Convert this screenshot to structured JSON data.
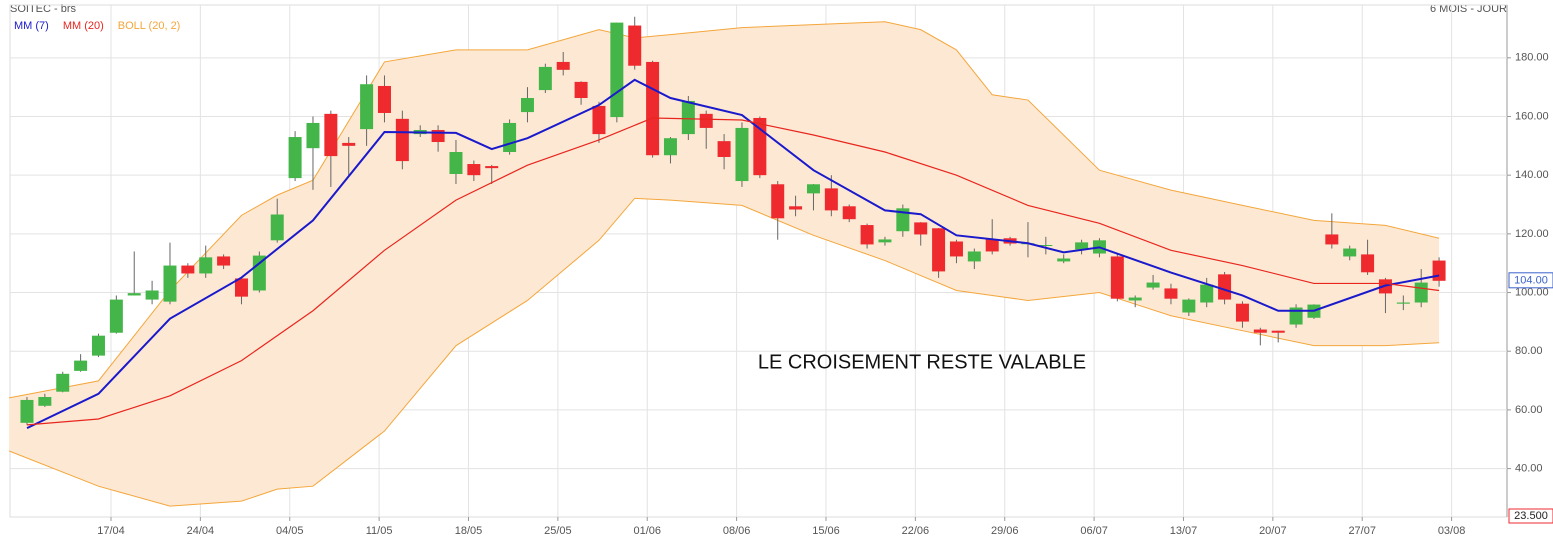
{
  "chart_data": {
    "type": "candlestick",
    "title": "SOITEC - brs",
    "subtitle": "6 MOIS - JOUR",
    "annotation": "LE CROISEMENT RESTE VALABLE",
    "up_color": "#44b649",
    "down_color": "#ee2a2f",
    "xlim": [
      -0.95,
      82.8
    ],
    "ylim": [
      23.5,
      198
    ],
    "grid": true,
    "xticks": [
      {
        "value": 4.7,
        "label": "17/04"
      },
      {
        "value": 9.7,
        "label": "24/04"
      },
      {
        "value": 14.7,
        "label": "04/05"
      },
      {
        "value": 19.7,
        "label": "11/05"
      },
      {
        "value": 24.7,
        "label": "18/05"
      },
      {
        "value": 29.7,
        "label": "25/05"
      },
      {
        "value": 34.7,
        "label": "01/06"
      },
      {
        "value": 39.7,
        "label": "08/06"
      },
      {
        "value": 44.7,
        "label": "15/06"
      },
      {
        "value": 49.7,
        "label": "22/06"
      },
      {
        "value": 54.7,
        "label": "29/06"
      },
      {
        "value": 59.7,
        "label": "06/07"
      },
      {
        "value": 64.7,
        "label": "13/07"
      },
      {
        "value": 69.7,
        "label": "20/07"
      },
      {
        "value": 74.7,
        "label": "27/07"
      },
      {
        "value": 79.7,
        "label": "03/08"
      }
    ],
    "yticks": [
      {
        "value": 23.5,
        "label": "23.500"
      },
      {
        "value": 40,
        "label": "40.00"
      },
      {
        "value": 60,
        "label": "60.00"
      },
      {
        "value": 80,
        "label": "80.00"
      },
      {
        "value": 100,
        "label": "100.00"
      },
      {
        "value": 120,
        "label": "120.00"
      },
      {
        "value": 140,
        "label": "140.00"
      },
      {
        "value": 160,
        "label": "160.00"
      },
      {
        "value": 180,
        "label": "180.00"
      }
    ],
    "last_price": {
      "value": 104,
      "label": "104.00"
    },
    "candles": {
      "x": [
        0,
        1,
        2,
        3,
        4,
        5,
        6,
        7,
        8,
        9,
        10,
        11,
        12,
        13,
        14,
        15,
        16,
        17,
        18,
        19,
        20,
        21,
        22,
        23,
        24,
        25,
        26,
        27,
        28,
        29,
        30,
        31,
        32,
        33,
        34,
        35,
        36,
        37,
        38,
        39,
        40,
        41,
        42,
        43,
        44,
        45,
        46,
        47,
        48,
        49,
        50,
        51,
        52,
        53,
        54,
        55,
        56,
        57,
        58,
        59,
        60,
        61,
        62,
        63,
        64,
        65,
        66,
        67,
        68,
        69,
        70,
        71,
        72,
        73,
        74,
        75,
        76,
        77,
        78,
        79
      ],
      "open": [
        55.6,
        61.4,
        66.2,
        73.3,
        78.5,
        86.3,
        99,
        97.6,
        96.9,
        109.2,
        106.5,
        112.3,
        104.8,
        100.7,
        117.8,
        139,
        149.2,
        160.9,
        151,
        155.7,
        170.4,
        159.2,
        154,
        155.4,
        140.4,
        143.8,
        143.1,
        147.9,
        161.5,
        169,
        178.6,
        171.8,
        163.6,
        159.8,
        191,
        178.6,
        146.8,
        154,
        160.9,
        151.6,
        138,
        159.5,
        136.9,
        129.4,
        133.8,
        135.5,
        129.4,
        123,
        117.1,
        120.9,
        123.9,
        121.9,
        117.4,
        110.6,
        118.1,
        118.5,
        116.6,
        116,
        110.6,
        114.7,
        113.3,
        112.3,
        97.3,
        101.7,
        101.4,
        93.2,
        96.6,
        106.2,
        96.2,
        87.4,
        87,
        89.1,
        91.4,
        119.8,
        112.3,
        113,
        104.5,
        96.2,
        96.6,
        110.9
      ],
      "high": [
        64.4,
        65.5,
        73,
        79,
        86,
        99,
        114,
        104,
        117,
        110,
        116,
        113,
        105,
        114,
        132,
        155,
        160,
        162,
        153,
        174,
        174,
        162,
        157,
        157,
        152,
        145,
        143.5,
        159,
        170,
        178,
        182,
        172,
        165,
        192,
        194,
        179,
        153,
        167,
        162,
        154,
        158,
        160,
        138,
        133,
        137,
        140,
        130,
        123.5,
        119,
        130,
        124,
        122,
        118,
        115,
        125,
        119,
        124,
        119,
        113,
        118,
        118.5,
        113,
        99,
        106,
        103,
        98,
        105,
        107,
        97,
        88,
        87,
        96,
        96,
        127,
        116,
        118,
        105,
        99,
        108,
        112
      ],
      "low": [
        54.9,
        61,
        66,
        73,
        78,
        86,
        99,
        96,
        96,
        105,
        105,
        108,
        96,
        100,
        117,
        138,
        135,
        136,
        140,
        150,
        158,
        142,
        153,
        148,
        137,
        138,
        137,
        147,
        158,
        168,
        174,
        164,
        151,
        158,
        176,
        146,
        144,
        152,
        149,
        142,
        136,
        139,
        118,
        126,
        128,
        126,
        124,
        115,
        116,
        119,
        116,
        105,
        110,
        108,
        113,
        116,
        112,
        113,
        110,
        113,
        112,
        97,
        95,
        101,
        96,
        92,
        95,
        96,
        88,
        82,
        83,
        88,
        91,
        115,
        111,
        106,
        93,
        94,
        95,
        102
      ],
      "close": [
        63.4,
        64.4,
        72.3,
        76.8,
        85.3,
        97.6,
        99.8,
        100.7,
        109.2,
        106.5,
        112,
        109.2,
        98.6,
        112.6,
        126.6,
        153,
        157.8,
        146.5,
        150,
        171,
        161.2,
        144.8,
        155.4,
        151.3,
        147.9,
        140,
        142.4,
        157.8,
        166.3,
        176.9,
        175.9,
        166.3,
        154,
        192,
        177.3,
        146.8,
        152.6,
        165.3,
        156.1,
        146.2,
        156.1,
        140,
        125.3,
        128.3,
        136.9,
        128,
        125,
        116.4,
        118.1,
        128.7,
        119.8,
        107.2,
        112.3,
        114,
        114,
        116.7,
        116.8,
        116.2,
        111.6,
        117.1,
        117.8,
        97.9,
        98.3,
        103.4,
        97.9,
        97.6,
        102.7,
        97.6,
        90.1,
        86.3,
        86.3,
        94.9,
        95.9,
        116.4,
        115,
        106.9,
        99.7,
        96.6,
        103.4,
        104
      ]
    },
    "series": [
      {
        "name": "MM (7)",
        "color": "#1a1acc",
        "x": [
          0,
          4,
          8,
          12,
          16,
          20,
          24,
          26,
          28,
          32,
          34,
          36,
          40,
          44,
          48,
          50,
          52,
          56,
          58,
          60,
          64,
          68,
          70,
          72,
          76,
          79
        ],
        "values": [
          53.8,
          65.5,
          91.1,
          105.1,
          124.6,
          154.7,
          154.4,
          148.9,
          152.6,
          163.9,
          172.5,
          166.3,
          160.5,
          141.7,
          128,
          126.7,
          119.5,
          116.8,
          113.7,
          115.4,
          106.8,
          99,
          93.8,
          93.8,
          102.4,
          105.8
        ]
      },
      {
        "name": "MM (20)",
        "color": "#e8261f",
        "x": [
          0,
          4,
          8,
          12,
          16,
          20,
          24,
          28,
          32,
          35,
          40,
          44,
          48,
          52,
          56,
          60,
          64,
          68,
          72,
          76,
          79
        ],
        "values": [
          54.9,
          56.9,
          64.8,
          76.8,
          93.8,
          114.4,
          131.5,
          143.4,
          152,
          159.5,
          158.8,
          153.7,
          147.9,
          140,
          129.7,
          123.6,
          114.4,
          109.2,
          103.1,
          103.1,
          100.7
        ]
      }
    ],
    "bollinger": {
      "name": "BOLL (20, 2)",
      "color": "#f4a63c",
      "fill": "#fde9d3",
      "x": [
        -1,
        4,
        8,
        12,
        14,
        16,
        20,
        24,
        28,
        32,
        34,
        36,
        40,
        44,
        48,
        50,
        52,
        54,
        56,
        60,
        64,
        68,
        72,
        76,
        79
      ],
      "upper": [
        64.1,
        69.9,
        100.7,
        126.3,
        133.2,
        138.3,
        178.6,
        182.7,
        182.7,
        189.6,
        186.8,
        187.9,
        190.3,
        191.3,
        192.3,
        189.6,
        182.7,
        167.4,
        165.6,
        141.7,
        134.9,
        129.7,
        124.6,
        122.9,
        118.5
      ],
      "lower": [
        46,
        34,
        27.2,
        28.9,
        33,
        34,
        52.8,
        81.9,
        97.3,
        117.8,
        132.1,
        131.5,
        129.7,
        119.5,
        110.9,
        105.8,
        100.7,
        99,
        97.3,
        100,
        92.1,
        87,
        81.9,
        81.9,
        82.9
      ]
    }
  }
}
